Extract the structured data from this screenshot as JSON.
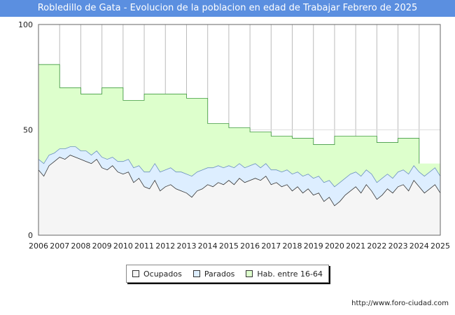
{
  "title": "Robledillo de Gata - Evolucion de la poblacion en edad de Trabajar Febrero de 2025",
  "source": "http://www.foro-ciudad.com",
  "colors": {
    "title_bg": "#5b8fe0",
    "ocupados_fill": "#f5f5f5",
    "ocupados_line": "#333333",
    "parados_fill": "#ddeeff",
    "parados_line": "#6a8fc0",
    "hab_fill": "#ddffcc",
    "hab_line": "#3f9a3f"
  },
  "chart_data": {
    "type": "area",
    "xlim": [
      2006,
      2025
    ],
    "ylim": [
      0,
      100
    ],
    "y_ticks": [
      0,
      50,
      100
    ],
    "x_ticks": [
      2006,
      2007,
      2008,
      2009,
      2010,
      2011,
      2012,
      2013,
      2014,
      2015,
      2016,
      2017,
      2018,
      2019,
      2020,
      2021,
      2022,
      2023,
      2024,
      2025
    ],
    "grid": true,
    "legend_position": "bottom",
    "series": [
      {
        "name": "Ocupados",
        "key": "ocupados",
        "x": [
          2006,
          2006.25,
          2006.5,
          2006.75,
          2007,
          2007.25,
          2007.5,
          2007.75,
          2008,
          2008.25,
          2008.5,
          2008.75,
          2009,
          2009.25,
          2009.5,
          2009.75,
          2010,
          2010.25,
          2010.5,
          2010.75,
          2011,
          2011.25,
          2011.5,
          2011.75,
          2012,
          2012.25,
          2012.5,
          2012.75,
          2013,
          2013.25,
          2013.5,
          2013.75,
          2014,
          2014.25,
          2014.5,
          2014.75,
          2015,
          2015.25,
          2015.5,
          2015.75,
          2016,
          2016.25,
          2016.5,
          2016.75,
          2017,
          2017.25,
          2017.5,
          2017.75,
          2018,
          2018.25,
          2018.5,
          2018.75,
          2019,
          2019.25,
          2019.5,
          2019.75,
          2020,
          2020.25,
          2020.5,
          2020.75,
          2021,
          2021.25,
          2021.5,
          2021.75,
          2022,
          2022.25,
          2022.5,
          2022.75,
          2023,
          2023.25,
          2023.5,
          2023.75,
          2024,
          2024.25,
          2024.5,
          2024.75,
          2025
        ],
        "y": [
          31,
          28,
          33,
          35,
          37,
          36,
          38,
          37,
          36,
          35,
          34,
          36,
          32,
          31,
          33,
          30,
          29,
          30,
          25,
          27,
          23,
          22,
          26,
          21,
          23,
          24,
          22,
          21,
          20,
          18,
          21,
          22,
          24,
          23,
          25,
          24,
          26,
          24,
          27,
          25,
          26,
          27,
          26,
          28,
          24,
          25,
          23,
          24,
          21,
          23,
          20,
          22,
          19,
          20,
          16,
          18,
          14,
          16,
          19,
          21,
          23,
          20,
          24,
          21,
          17,
          19,
          22,
          20,
          23,
          24,
          21,
          26,
          23,
          20,
          22,
          24,
          20
        ]
      },
      {
        "name": "Parados",
        "key": "parados",
        "x": [
          2006,
          2006.25,
          2006.5,
          2006.75,
          2007,
          2007.25,
          2007.5,
          2007.75,
          2008,
          2008.25,
          2008.5,
          2008.75,
          2009,
          2009.25,
          2009.5,
          2009.75,
          2010,
          2010.25,
          2010.5,
          2010.75,
          2011,
          2011.25,
          2011.5,
          2011.75,
          2012,
          2012.25,
          2012.5,
          2012.75,
          2013,
          2013.25,
          2013.5,
          2013.75,
          2014,
          2014.25,
          2014.5,
          2014.75,
          2015,
          2015.25,
          2015.5,
          2015.75,
          2016,
          2016.25,
          2016.5,
          2016.75,
          2017,
          2017.25,
          2017.5,
          2017.75,
          2018,
          2018.25,
          2018.5,
          2018.75,
          2019,
          2019.25,
          2019.5,
          2019.75,
          2020,
          2020.25,
          2020.5,
          2020.75,
          2021,
          2021.25,
          2021.5,
          2021.75,
          2022,
          2022.25,
          2022.5,
          2022.75,
          2023,
          2023.25,
          2023.5,
          2023.75,
          2024,
          2024.25,
          2024.5,
          2024.75,
          2025
        ],
        "y": [
          5,
          6,
          5,
          4,
          4,
          5,
          4,
          5,
          4,
          5,
          4,
          4,
          5,
          5,
          4,
          5,
          6,
          6,
          7,
          6,
          7,
          8,
          8,
          9,
          8,
          8,
          8,
          9,
          9,
          10,
          9,
          9,
          8,
          9,
          8,
          8,
          7,
          8,
          7,
          7,
          7,
          7,
          6,
          6,
          7,
          6,
          7,
          7,
          8,
          7,
          8,
          7,
          8,
          8,
          9,
          8,
          9,
          9,
          8,
          8,
          7,
          8,
          7,
          8,
          8,
          8,
          7,
          7,
          7,
          7,
          8,
          7,
          7,
          8,
          8,
          8,
          8
        ]
      },
      {
        "name": "Hab. entre 16-64",
        "key": "hab",
        "x": [
          2006,
          2007,
          2008,
          2009,
          2010,
          2011,
          2012,
          2013,
          2014,
          2015,
          2016,
          2017,
          2018,
          2019,
          2020,
          2021,
          2022,
          2023,
          2024
        ],
        "y": [
          81,
          70,
          67,
          70,
          64,
          67,
          67,
          65,
          53,
          51,
          49,
          47,
          46,
          43,
          47,
          47,
          44,
          46,
          34
        ]
      }
    ]
  },
  "legend": {
    "ocupados": "Ocupados",
    "parados": "Parados",
    "hab": "Hab. entre 16-64"
  }
}
